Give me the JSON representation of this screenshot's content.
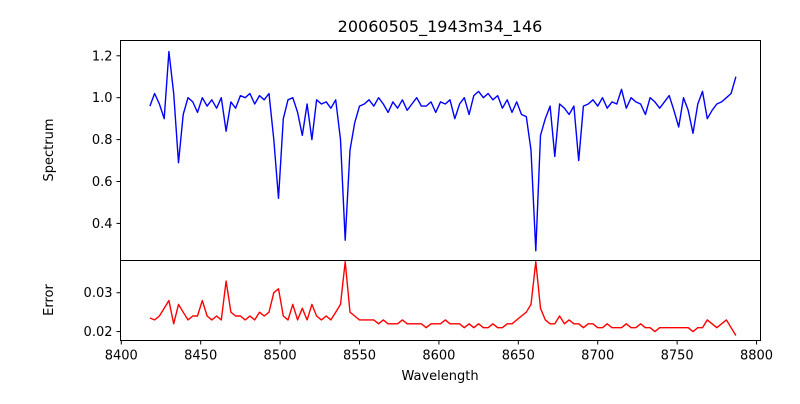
{
  "chart_data": [
    {
      "type": "line",
      "title": "20060505_1943m34_146",
      "xlabel": "",
      "ylabel": "Spectrum",
      "color": "#0000ff",
      "xlim": [
        8399.5,
        8802.5
      ],
      "ylim": [
        0.223,
        1.273
      ],
      "yticks": [
        "0.4",
        "0.6",
        "0.8",
        "1.0",
        "1.2"
      ],
      "x_start": 8418,
      "x_step": 3,
      "values": [
        0.96,
        1.02,
        0.97,
        0.9,
        1.22,
        1.02,
        0.69,
        0.92,
        1.0,
        0.98,
        0.93,
        1.0,
        0.96,
        0.99,
        0.95,
        1.0,
        0.84,
        0.98,
        0.95,
        1.01,
        1.0,
        1.02,
        0.97,
        1.01,
        0.99,
        1.02,
        0.8,
        0.52,
        0.9,
        0.99,
        1.0,
        0.93,
        0.82,
        0.97,
        0.8,
        0.99,
        0.97,
        0.98,
        0.95,
        0.99,
        0.8,
        0.32,
        0.75,
        0.88,
        0.96,
        0.97,
        0.99,
        0.96,
        1.0,
        0.97,
        0.93,
        0.98,
        0.95,
        0.99,
        0.94,
        0.97,
        1.0,
        0.96,
        0.96,
        0.98,
        0.93,
        0.98,
        0.97,
        0.99,
        0.9,
        0.97,
        1.0,
        0.92,
        1.01,
        1.03,
        1.0,
        1.02,
        0.99,
        1.01,
        0.95,
        0.99,
        0.93,
        0.98,
        0.92,
        0.91,
        0.75,
        0.27,
        0.82,
        0.9,
        0.96,
        0.72,
        0.97,
        0.95,
        0.92,
        0.96,
        0.7,
        0.96,
        0.97,
        0.99,
        0.96,
        1.0,
        0.95,
        0.98,
        0.97,
        1.04,
        0.95,
        1.0,
        0.98,
        0.97,
        0.92,
        1.0,
        0.98,
        0.95,
        0.98,
        1.01,
        0.94,
        0.86,
        1.0,
        0.94,
        0.83,
        0.97,
        1.03,
        0.9,
        0.94,
        0.97,
        0.98,
        1.0,
        1.02,
        1.1
      ]
    },
    {
      "type": "line",
      "xlabel": "Wavelength",
      "ylabel": "Error",
      "color": "#ff0000",
      "xlim": [
        8399.5,
        8802.5
      ],
      "ylim": [
        0.0177,
        0.0383
      ],
      "xticks": [
        "8400",
        "8450",
        "8500",
        "8550",
        "8600",
        "8650",
        "8700",
        "8750",
        "8800"
      ],
      "yticks": [
        "0.02",
        "0.03"
      ],
      "x_start": 8418,
      "x_step": 3,
      "values": [
        0.0235,
        0.023,
        0.024,
        0.026,
        0.028,
        0.022,
        0.027,
        0.025,
        0.023,
        0.024,
        0.024,
        0.028,
        0.024,
        0.023,
        0.024,
        0.023,
        0.033,
        0.025,
        0.024,
        0.024,
        0.023,
        0.024,
        0.023,
        0.025,
        0.024,
        0.025,
        0.03,
        0.031,
        0.024,
        0.023,
        0.027,
        0.023,
        0.026,
        0.023,
        0.027,
        0.024,
        0.023,
        0.024,
        0.023,
        0.025,
        0.027,
        0.038,
        0.025,
        0.024,
        0.023,
        0.023,
        0.023,
        0.023,
        0.022,
        0.023,
        0.022,
        0.022,
        0.022,
        0.023,
        0.022,
        0.022,
        0.022,
        0.022,
        0.021,
        0.022,
        0.022,
        0.022,
        0.023,
        0.022,
        0.022,
        0.022,
        0.021,
        0.022,
        0.021,
        0.022,
        0.021,
        0.021,
        0.022,
        0.021,
        0.021,
        0.022,
        0.022,
        0.023,
        0.024,
        0.025,
        0.027,
        0.038,
        0.026,
        0.023,
        0.022,
        0.022,
        0.024,
        0.022,
        0.023,
        0.022,
        0.022,
        0.021,
        0.022,
        0.022,
        0.021,
        0.021,
        0.022,
        0.021,
        0.021,
        0.021,
        0.022,
        0.021,
        0.021,
        0.022,
        0.021,
        0.021,
        0.02,
        0.021,
        0.021,
        0.021,
        0.021,
        0.021,
        0.021,
        0.021,
        0.02,
        0.021,
        0.021,
        0.023,
        0.022,
        0.021,
        0.022,
        0.023,
        0.021,
        0.019
      ]
    }
  ]
}
